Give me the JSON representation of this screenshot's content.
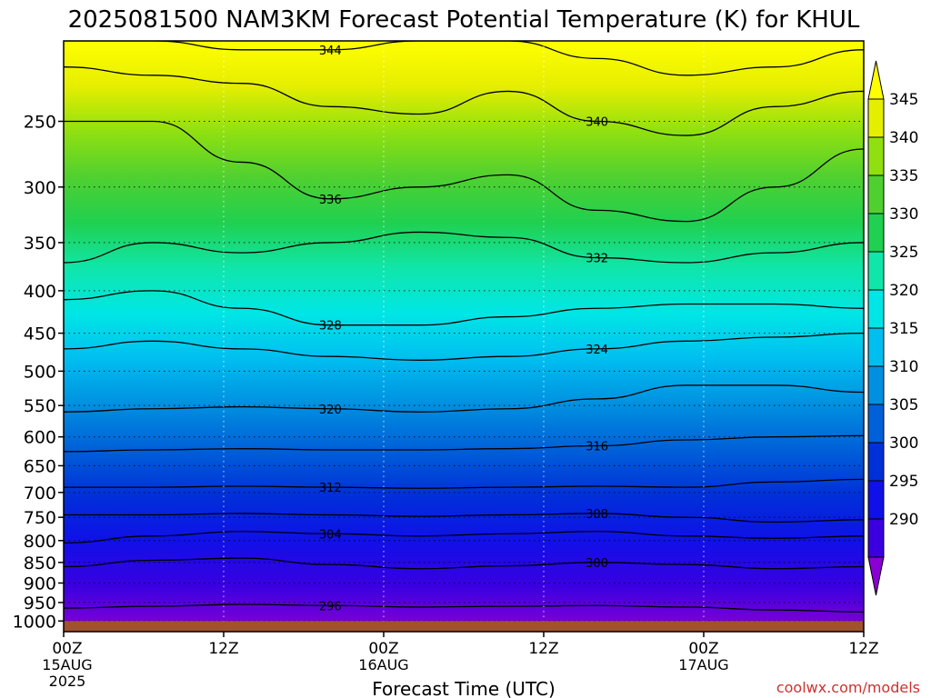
{
  "chart_data": {
    "type": "heatmap",
    "subtype": "filled-contour",
    "title": "2025081500 NAM3KM Forecast Potential Temperature (K) for KHUL",
    "xlabel": "Forecast Time (UTC)",
    "ylabel": "",
    "credit": "coolwx.com/models",
    "x_ticks": [
      {
        "top": "00Z",
        "mid": "15AUG",
        "bot": "2025",
        "hour": 0
      },
      {
        "top": "12Z",
        "mid": "",
        "bot": "",
        "hour": 12
      },
      {
        "top": "00Z",
        "mid": "16AUG",
        "bot": "",
        "hour": 24
      },
      {
        "top": "12Z",
        "mid": "",
        "bot": "",
        "hour": 36
      },
      {
        "top": "00Z",
        "mid": "17AUG",
        "bot": "",
        "hour": 48
      },
      {
        "top": "12Z",
        "mid": "",
        "bot": "",
        "hour": 60
      }
    ],
    "x_range_hours": [
      0,
      60
    ],
    "y_axis": "pressure (hPa), log scale, reversed",
    "y_range": [
      1030,
      200
    ],
    "y_ticks": [
      250,
      300,
      350,
      400,
      450,
      500,
      550,
      600,
      650,
      700,
      750,
      800,
      850,
      900,
      950,
      1000
    ],
    "surface_pressure": 1000,
    "colorbar": {
      "levels": [
        290,
        295,
        300,
        305,
        310,
        315,
        320,
        325,
        330,
        335,
        340,
        345
      ],
      "labels": [
        "290",
        "295",
        "300",
        "305",
        "310",
        "315",
        "320",
        "325",
        "330",
        "335",
        "340",
        "345"
      ],
      "colors": [
        "#8a00d4",
        "#3a00e0",
        "#1010e8",
        "#0030d8",
        "#0060d8",
        "#0090e0",
        "#00bef0",
        "#00e6e6",
        "#10e6aa",
        "#20d050",
        "#50d030",
        "#90e010",
        "#e6ee00",
        "#ffff00"
      ]
    },
    "contours": [
      {
        "value": 296,
        "label": "296",
        "pressure": [
          965,
          960,
          955,
          958,
          962,
          960,
          958,
          962,
          970,
          975
        ]
      },
      {
        "value": 300,
        "label": "300",
        "pressure": [
          860,
          845,
          840,
          855,
          865,
          858,
          850,
          855,
          865,
          860
        ]
      },
      {
        "value": 304,
        "label": "304",
        "pressure": [
          805,
          790,
          780,
          785,
          790,
          785,
          780,
          790,
          795,
          790
        ]
      },
      {
        "value": 308,
        "label": "308",
        "pressure": [
          745,
          745,
          742,
          745,
          748,
          745,
          742,
          750,
          760,
          755
        ]
      },
      {
        "value": 312,
        "label": "312",
        "pressure": [
          690,
          690,
          688,
          690,
          692,
          690,
          688,
          690,
          680,
          675
        ]
      },
      {
        "value": 316,
        "label": "316",
        "pressure": [
          625,
          622,
          620,
          622,
          622,
          620,
          615,
          605,
          600,
          598
        ]
      },
      {
        "value": 320,
        "label": "320",
        "pressure": [
          560,
          555,
          552,
          555,
          560,
          555,
          540,
          520,
          520,
          530
        ]
      },
      {
        "value": 324,
        "label": "324",
        "pressure": [
          470,
          460,
          470,
          480,
          485,
          480,
          470,
          460,
          455,
          450
        ]
      },
      {
        "value": 328,
        "label": "328",
        "pressure": [
          410,
          400,
          420,
          440,
          440,
          430,
          420,
          415,
          415,
          420
        ]
      },
      {
        "value": 332,
        "label": "332",
        "pressure": [
          370,
          350,
          360,
          350,
          340,
          345,
          365,
          370,
          360,
          350
        ]
      },
      {
        "value": 336,
        "label": "336",
        "pressure": [
          250,
          250,
          280,
          310,
          300,
          290,
          320,
          330,
          300,
          270
        ]
      },
      {
        "value": 340,
        "label": "340",
        "pressure": [
          215,
          220,
          225,
          240,
          245,
          230,
          250,
          260,
          240,
          230
        ]
      },
      {
        "value": 344,
        "label": "344",
        "pressure": [
          200,
          200,
          205,
          205,
          200,
          200,
          210,
          220,
          215,
          205
        ]
      }
    ]
  }
}
